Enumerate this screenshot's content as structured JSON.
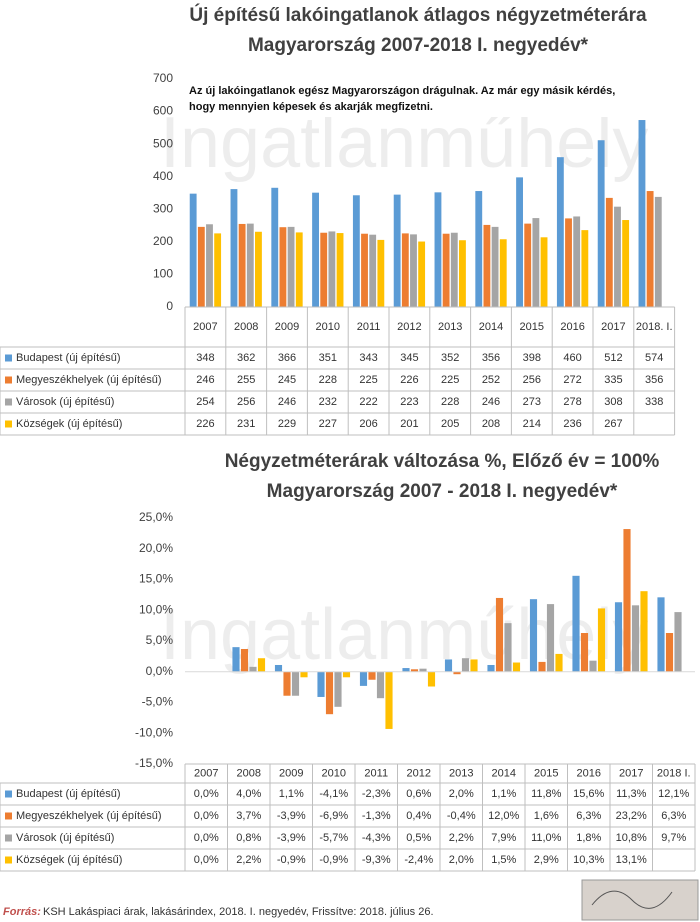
{
  "watermark": "Ingatlanműhely",
  "footer": {
    "label": "Forrás:",
    "text": "KSH Lakáspiaci árak, lakásárindex, 2018. I. negyedév, Frissítve: 2018. július 26."
  },
  "chart_data": [
    {
      "type": "bar",
      "title": "Új építésű lakóingatlanok átlagos négyzetméterára",
      "subtitle": "Magyarország 2007-2018 I. negyedév*",
      "annotations": [
        "Az új lakóingatlanok egész Magyarországon drágulnak. Az már egy másik kérdés,",
        "hogy mennyien képesek és akarják megfizetni."
      ],
      "categories": [
        "2007",
        "2008",
        "2009",
        "2010",
        "2011",
        "2012",
        "2013",
        "2014",
        "2015",
        "2016",
        "2017",
        "2018. I."
      ],
      "series": [
        {
          "name": "Budapest (új építésű)",
          "color": "#5b9bd5",
          "values": [
            348,
            362,
            366,
            351,
            343,
            345,
            352,
            356,
            398,
            460,
            512,
            574
          ]
        },
        {
          "name": "Megyeszékhelyek (új építésű)",
          "color": "#ed7d31",
          "values": [
            246,
            255,
            245,
            228,
            225,
            226,
            225,
            252,
            256,
            272,
            335,
            356
          ]
        },
        {
          "name": "Városok (új építésű)",
          "color": "#a5a5a5",
          "values": [
            254,
            256,
            246,
            232,
            222,
            223,
            228,
            246,
            273,
            278,
            308,
            338
          ]
        },
        {
          "name": "Községek (új építésű)",
          "color": "#ffc000",
          "values": [
            226,
            231,
            229,
            227,
            206,
            201,
            205,
            208,
            214,
            236,
            267,
            null
          ]
        }
      ],
      "ylim": [
        0,
        700
      ],
      "yticks": [
        0,
        100,
        200,
        300,
        400,
        500,
        600,
        700
      ]
    },
    {
      "type": "bar",
      "title": "Négyzetméterárak változása %, Előző év = 100%",
      "subtitle": "Magyarország 2007 - 2018 I. negyedév*",
      "categories": [
        "2007",
        "2008",
        "2009",
        "2010",
        "2011",
        "2012",
        "2013",
        "2014",
        "2015",
        "2016",
        "2017",
        "2018 I."
      ],
      "series": [
        {
          "name": "Budapest (új építésű)",
          "color": "#5b9bd5",
          "values": [
            0.0,
            4.0,
            1.1,
            -4.1,
            -2.3,
            0.6,
            2.0,
            1.1,
            11.8,
            15.6,
            11.3,
            12.1
          ],
          "value_labels": [
            "0,0%",
            "4,0%",
            "1,1%",
            "-4,1%",
            "-2,3%",
            "0,6%",
            "2,0%",
            "1,1%",
            "11,8%",
            "15,6%",
            "11,3%",
            "12,1%"
          ]
        },
        {
          "name": "Megyeszékhelyek (új építésű)",
          "color": "#ed7d31",
          "values": [
            0.0,
            3.7,
            -3.9,
            -6.9,
            -1.3,
            0.4,
            -0.4,
            12.0,
            1.6,
            6.3,
            23.2,
            6.3
          ],
          "value_labels": [
            "0,0%",
            "3,7%",
            "-3,9%",
            "-6,9%",
            "-1,3%",
            "0,4%",
            "-0,4%",
            "12,0%",
            "1,6%",
            "6,3%",
            "23,2%",
            "6,3%"
          ]
        },
        {
          "name": "Városok (új építésű)",
          "color": "#a5a5a5",
          "values": [
            0.0,
            0.8,
            -3.9,
            -5.7,
            -4.3,
            0.5,
            2.2,
            7.9,
            11.0,
            1.8,
            10.8,
            9.7
          ],
          "value_labels": [
            "0,0%",
            "0,8%",
            "-3,9%",
            "-5,7%",
            "-4,3%",
            "0,5%",
            "2,2%",
            "7,9%",
            "11,0%",
            "1,8%",
            "10,8%",
            "9,7%"
          ]
        },
        {
          "name": "Községek (új építésű)",
          "color": "#ffc000",
          "values": [
            0.0,
            2.2,
            -0.9,
            -0.9,
            -9.3,
            -2.4,
            2.0,
            1.5,
            2.9,
            10.3,
            13.1,
            null
          ],
          "value_labels": [
            "0,0%",
            "2,2%",
            "-0,9%",
            "-0,9%",
            "-9,3%",
            "-2,4%",
            "2,0%",
            "1,5%",
            "2,9%",
            "10,3%",
            "13,1%",
            null
          ]
        }
      ],
      "ylim": [
        -15,
        25
      ],
      "yticks": [
        {
          "value": -15,
          "label": "-15,0%"
        },
        {
          "value": -10,
          "label": "-10,0%"
        },
        {
          "value": -5,
          "label": "-5,0%"
        },
        {
          "value": 0,
          "label": "0,0%"
        },
        {
          "value": 5,
          "label": "5,0%"
        },
        {
          "value": 10,
          "label": "10,0%"
        },
        {
          "value": 15,
          "label": "15,0%"
        },
        {
          "value": 20,
          "label": "20,0%"
        },
        {
          "value": 25,
          "label": "25,0%"
        }
      ]
    }
  ]
}
